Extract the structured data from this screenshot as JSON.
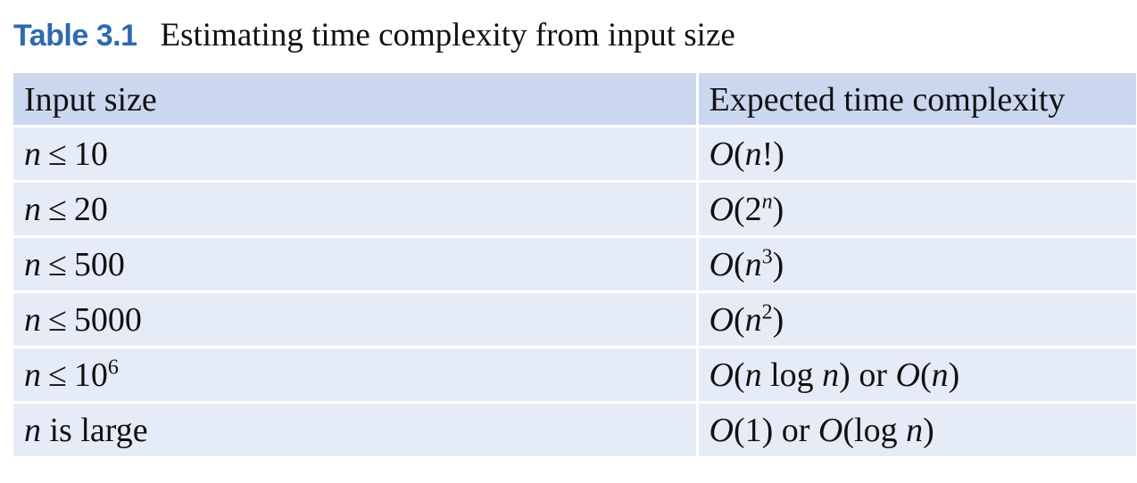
{
  "caption": {
    "label": "Table 3.1",
    "title": "Estimating time complexity from input size"
  },
  "table": {
    "headers": [
      "Input size",
      "Expected time complexity"
    ],
    "rows": [
      {
        "input": {
          "var": "n",
          "op": "≤",
          "val": "10",
          "sup": ""
        },
        "complexity": "O(n!)"
      },
      {
        "input": {
          "var": "n",
          "op": "≤",
          "val": "20",
          "sup": ""
        },
        "complexity": "O(2^n)"
      },
      {
        "input": {
          "var": "n",
          "op": "≤",
          "val": "500",
          "sup": ""
        },
        "complexity": "O(n^3)"
      },
      {
        "input": {
          "var": "n",
          "op": "≤",
          "val": "5000",
          "sup": ""
        },
        "complexity": "O(n^2)"
      },
      {
        "input": {
          "var": "n",
          "op": "≤",
          "val": "10",
          "sup": "6"
        },
        "complexity": "O(n log n) or O(n)"
      },
      {
        "input": {
          "var": "n",
          "op": "",
          "val": "is large",
          "sup": ""
        },
        "complexity": "O(1) or O(log n)"
      }
    ],
    "math_parts": {
      "O": "O",
      "n": "n",
      "log": "log",
      "or": "or",
      "lparen": "(",
      "rparen": ")",
      "bang": "!",
      "two": "2",
      "three": "3",
      "one": "1"
    }
  },
  "colors": {
    "caption_label": "#2f6ab0",
    "header_bg": "#cbd7ef",
    "row_bg": "#e5ebf7",
    "divider": "#ffffff"
  }
}
